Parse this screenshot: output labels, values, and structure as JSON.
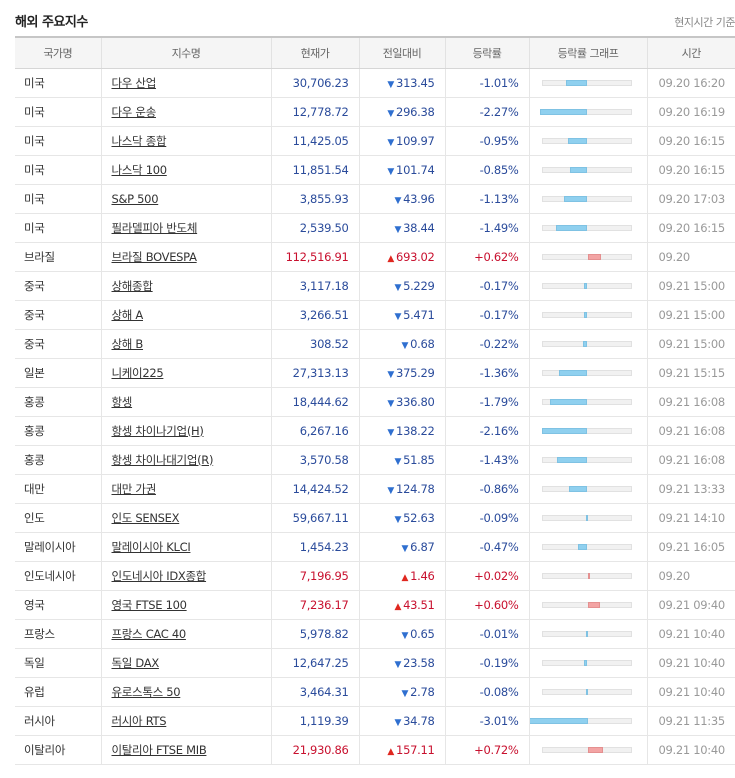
{
  "title": "해외 주요지수",
  "timezone_note": "현지시간 기준",
  "columns": [
    "국가명",
    "지수명",
    "현재가",
    "전일대비",
    "등락률",
    "등락률 그래프",
    "시간"
  ],
  "rows": [
    {
      "country": "미국",
      "name": "다우 산업",
      "price": "30,706.23",
      "change": "313.45",
      "dir": "down",
      "rate": "-1.01%",
      "rate_value": -1.01,
      "time": "09.20 16:20"
    },
    {
      "country": "미국",
      "name": "다우 운송",
      "price": "12,778.72",
      "change": "296.38",
      "dir": "down",
      "rate": "-2.27%",
      "rate_value": -2.27,
      "time": "09.20 16:19"
    },
    {
      "country": "미국",
      "name": "나스닥 종합",
      "price": "11,425.05",
      "change": "109.97",
      "dir": "down",
      "rate": "-0.95%",
      "rate_value": -0.95,
      "time": "09.20 16:15"
    },
    {
      "country": "미국",
      "name": "나스닥 100",
      "price": "11,851.54",
      "change": "101.74",
      "dir": "down",
      "rate": "-0.85%",
      "rate_value": -0.85,
      "time": "09.20 16:15"
    },
    {
      "country": "미국",
      "name": "S&P 500",
      "price": "3,855.93",
      "change": "43.96",
      "dir": "down",
      "rate": "-1.13%",
      "rate_value": -1.13,
      "time": "09.20 17:03"
    },
    {
      "country": "미국",
      "name": "필라델피아 반도체",
      "price": "2,539.50",
      "change": "38.44",
      "dir": "down",
      "rate": "-1.49%",
      "rate_value": -1.49,
      "time": "09.20 16:15"
    },
    {
      "country": "브라질",
      "name": "브라질 BOVESPA",
      "price": "112,516.91",
      "change": "693.02",
      "dir": "up",
      "rate": "+0.62%",
      "rate_value": 0.62,
      "time": "09.20"
    },
    {
      "country": "중국",
      "name": "상해종합",
      "price": "3,117.18",
      "change": "5.229",
      "dir": "down",
      "rate": "-0.17%",
      "rate_value": -0.17,
      "time": "09.21 15:00",
      "sep": true
    },
    {
      "country": "중국",
      "name": "상해 A",
      "price": "3,266.51",
      "change": "5.471",
      "dir": "down",
      "rate": "-0.17%",
      "rate_value": -0.17,
      "time": "09.21 15:00"
    },
    {
      "country": "중국",
      "name": "상해 B",
      "price": "308.52",
      "change": "0.68",
      "dir": "down",
      "rate": "-0.22%",
      "rate_value": -0.22,
      "time": "09.21 15:00"
    },
    {
      "country": "일본",
      "name": "니케이225",
      "price": "27,313.13",
      "change": "375.29",
      "dir": "down",
      "rate": "-1.36%",
      "rate_value": -1.36,
      "time": "09.21 15:15"
    },
    {
      "country": "홍콩",
      "name": "항셍",
      "price": "18,444.62",
      "change": "336.80",
      "dir": "down",
      "rate": "-1.79%",
      "rate_value": -1.79,
      "time": "09.21 16:08"
    },
    {
      "country": "홍콩",
      "name": "항셍 차이나기업(H)",
      "price": "6,267.16",
      "change": "138.22",
      "dir": "down",
      "rate": "-2.16%",
      "rate_value": -2.16,
      "time": "09.21 16:08"
    },
    {
      "country": "홍콩",
      "name": "항셍 차이나대기업(R)",
      "price": "3,570.58",
      "change": "51.85",
      "dir": "down",
      "rate": "-1.43%",
      "rate_value": -1.43,
      "time": "09.21 16:08"
    },
    {
      "country": "대만",
      "name": "대만 가권",
      "price": "14,424.52",
      "change": "124.78",
      "dir": "down",
      "rate": "-0.86%",
      "rate_value": -0.86,
      "time": "09.21 13:33"
    },
    {
      "country": "인도",
      "name": "인도 SENSEX",
      "price": "59,667.11",
      "change": "52.63",
      "dir": "down",
      "rate": "-0.09%",
      "rate_value": -0.09,
      "time": "09.21 14:10"
    },
    {
      "country": "말레이시아",
      "name": "말레이시아 KLCI",
      "price": "1,454.23",
      "change": "6.87",
      "dir": "down",
      "rate": "-0.47%",
      "rate_value": -0.47,
      "time": "09.21 16:05"
    },
    {
      "country": "인도네시아",
      "name": "인도네시아 IDX종합",
      "price": "7,196.95",
      "change": "1.46",
      "dir": "up",
      "rate": "+0.02%",
      "rate_value": 0.02,
      "time": "09.20"
    },
    {
      "country": "영국",
      "name": "영국 FTSE 100",
      "price": "7,236.17",
      "change": "43.51",
      "dir": "up",
      "rate": "+0.60%",
      "rate_value": 0.6,
      "time": "09.21 09:40",
      "sep": true
    },
    {
      "country": "프랑스",
      "name": "프랑스 CAC 40",
      "price": "5,978.82",
      "change": "0.65",
      "dir": "down",
      "rate": "-0.01%",
      "rate_value": -0.01,
      "time": "09.21 10:40"
    },
    {
      "country": "독일",
      "name": "독일 DAX",
      "price": "12,647.25",
      "change": "23.58",
      "dir": "down",
      "rate": "-0.19%",
      "rate_value": -0.19,
      "time": "09.21 10:40"
    },
    {
      "country": "유럽",
      "name": "유로스톡스 50",
      "price": "3,464.31",
      "change": "2.78",
      "dir": "down",
      "rate": "-0.08%",
      "rate_value": -0.08,
      "time": "09.21 10:40"
    },
    {
      "country": "러시아",
      "name": "러시아 RTS",
      "price": "1,119.39",
      "change": "34.78",
      "dir": "down",
      "rate": "-3.01%",
      "rate_value": -3.01,
      "time": "09.21 11:35"
    },
    {
      "country": "이탈리아",
      "name": "이탈리아 FTSE MIB",
      "price": "21,930.86",
      "change": "157.11",
      "dir": "up",
      "rate": "+0.72%",
      "rate_value": 0.72,
      "time": "09.21 10:40"
    }
  ],
  "colors": {
    "down": "#2a4b9b",
    "up": "#c8102e",
    "bar_down": "#8fd0ef",
    "bar_up": "#f3a4a4"
  }
}
